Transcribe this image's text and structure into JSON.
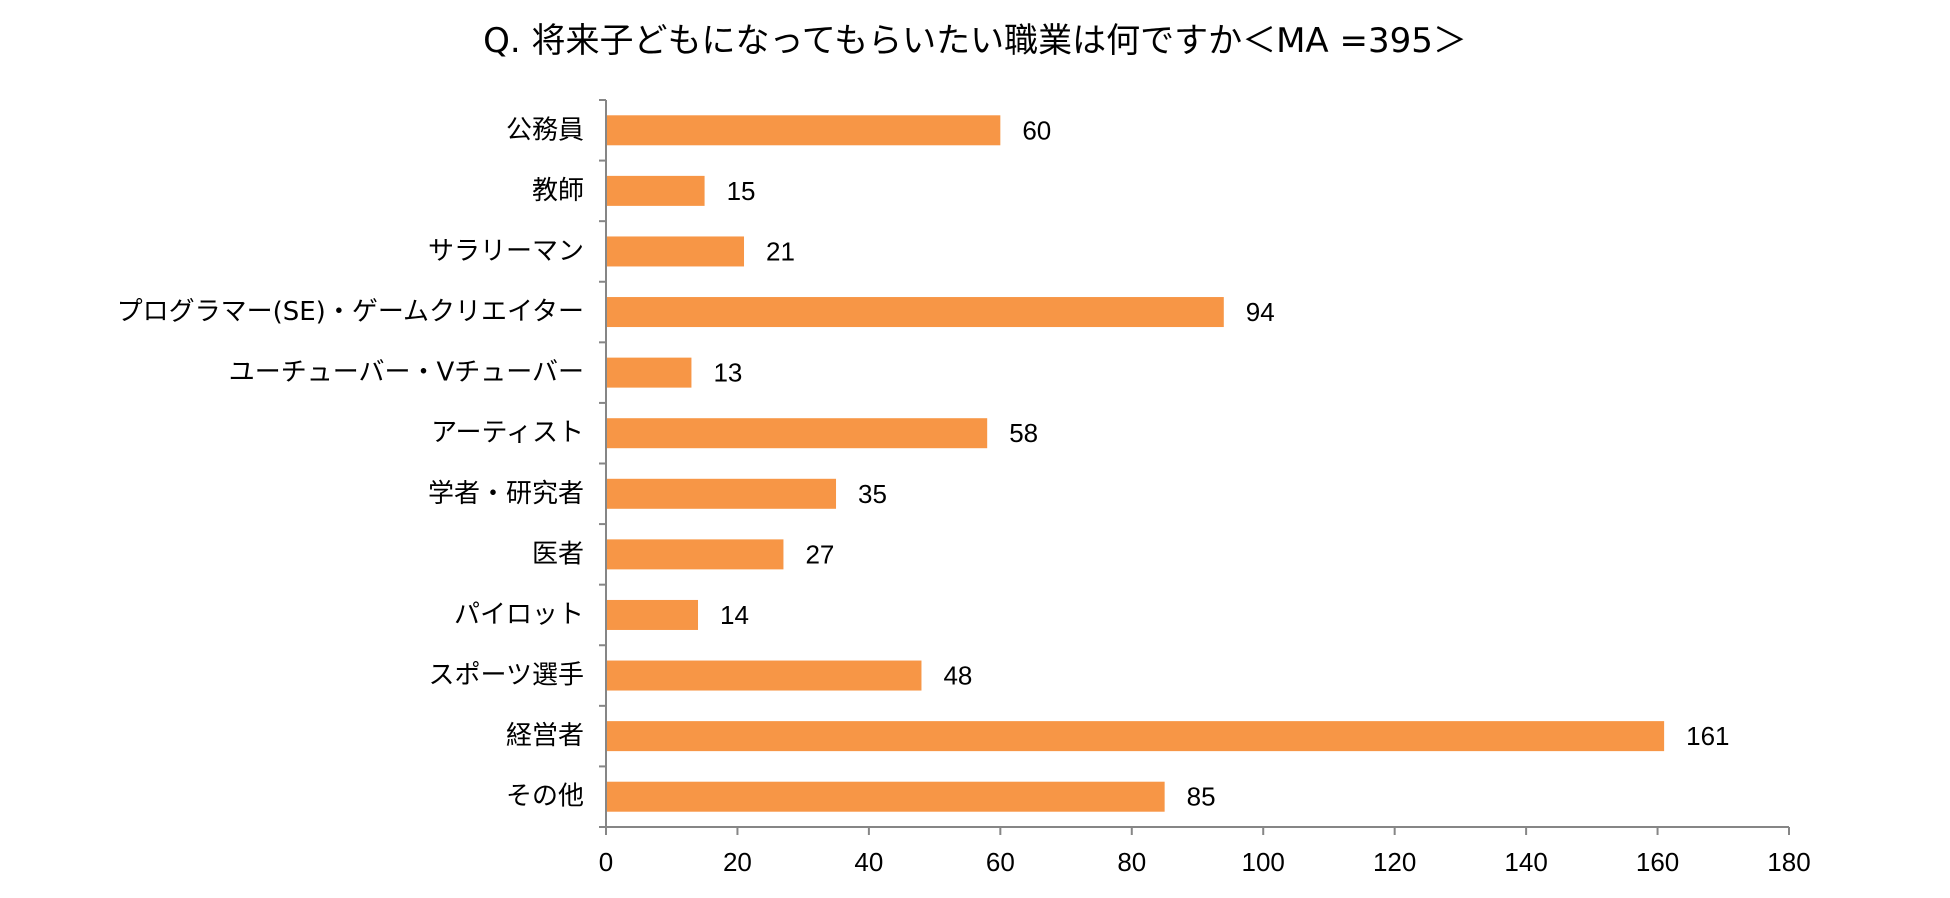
{
  "chart_data": {
    "type": "bar",
    "orientation": "horizontal",
    "title": "Q. 将来子どもになってもらいたい職業は何ですか＜MA =395＞",
    "categories": [
      "公務員",
      "教師",
      "サラリーマン",
      "プログラマー(SE)・ゲームクリエイター",
      "ユーチューバー・Vチューバー",
      "アーティスト",
      "学者・研究者",
      "医者",
      "パイロット",
      "スポーツ選手",
      "経営者",
      "その他"
    ],
    "values": [
      60,
      15,
      21,
      94,
      13,
      58,
      35,
      27,
      14,
      48,
      161,
      85
    ],
    "xlim": [
      0,
      180
    ],
    "xticks": [
      0,
      20,
      40,
      60,
      80,
      100,
      120,
      140,
      160,
      180
    ],
    "xlabel": "",
    "ylabel": "",
    "grid": false,
    "legend": "none",
    "bar_color": "#F79646",
    "axis_color": "#868686"
  }
}
